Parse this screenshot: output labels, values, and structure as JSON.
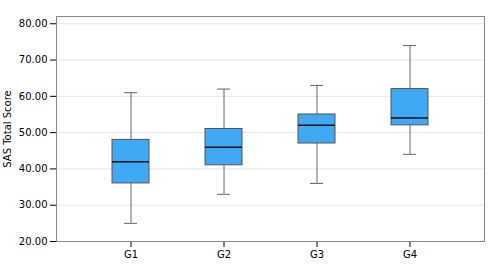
{
  "chart_data": {
    "type": "box",
    "categories": [
      "G1",
      "G2",
      "G3",
      "G4"
    ],
    "whisker_low": [
      25,
      33,
      36,
      44
    ],
    "q1": [
      36,
      41,
      47,
      52
    ],
    "median": [
      42,
      46,
      52,
      54
    ],
    "q3": [
      48,
      51,
      55,
      62
    ],
    "whisker_high": [
      61,
      62,
      63,
      74
    ],
    "ylabel": "SAS Total Score",
    "ylim": [
      20,
      82
    ],
    "yticks": [
      {
        "value": 20,
        "label": "20.00"
      },
      {
        "value": 30,
        "label": "30.00"
      },
      {
        "value": 40,
        "label": "40.00"
      },
      {
        "value": 50,
        "label": "50.00"
      },
      {
        "value": 60,
        "label": "60.00"
      },
      {
        "value": 70,
        "label": "70.00"
      },
      {
        "value": 80,
        "label": "80.00"
      }
    ],
    "color": "#3FA9F5",
    "grid": true
  }
}
